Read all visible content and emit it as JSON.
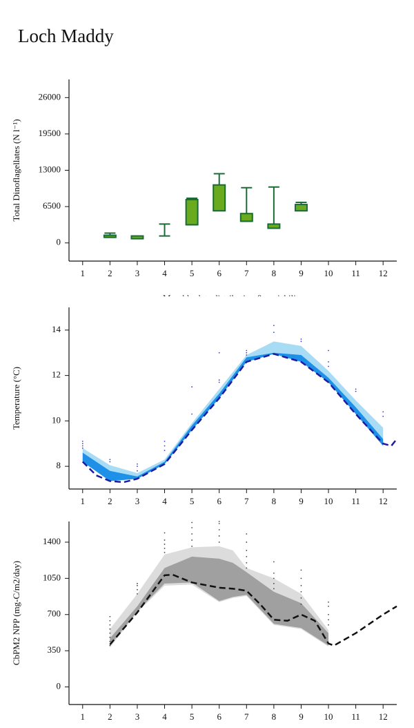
{
  "title": "Loch Maddy",
  "chart_data": [
    {
      "type": "box",
      "ylabel": "Total Dinoflagellates (N l⁻¹)",
      "xlabel": "Monthly data distribution & variability",
      "xlim": [
        0.5,
        12.5
      ],
      "xticks": [
        1,
        2,
        3,
        4,
        5,
        6,
        7,
        8,
        9,
        10,
        11,
        12
      ],
      "ylim": [
        -3250,
        29250
      ],
      "yticks": [
        0,
        6500,
        13000,
        19500,
        26000
      ],
      "color": "#6aaa1e",
      "line_color": "#1a6b35",
      "x": [
        2,
        3,
        4,
        5,
        6,
        7,
        8,
        9
      ],
      "low": [
        1000,
        null,
        1250,
        3250,
        5750,
        3875,
        2625,
        5750
      ],
      "q1": [
        1000,
        750,
        null,
        3250,
        5750,
        3875,
        2625,
        5750
      ],
      "q3": [
        1375,
        1250,
        null,
        7750,
        10375,
        5250,
        3375,
        6875
      ],
      "high": [
        1750,
        null,
        3375,
        8000,
        12375,
        9875,
        10000,
        7250
      ]
    },
    {
      "type": "line",
      "ylabel": "Temperature (°C)",
      "xlim": [
        0.5,
        12.5
      ],
      "xticks": [
        1,
        2,
        3,
        4,
        5,
        6,
        7,
        8,
        9,
        10,
        11,
        12
      ],
      "ylim": [
        7,
        15
      ],
      "yticks": [
        8,
        10,
        12,
        14
      ],
      "series": [
        {
          "kind": "band",
          "color": "#a8dcf5",
          "x": [
            1,
            2,
            3,
            4,
            5,
            6,
            7,
            8,
            9,
            10,
            11,
            12
          ],
          "lower": [
            8.2,
            7.35,
            7.45,
            8.1,
            9.6,
            11.0,
            12.6,
            12.95,
            12.6,
            11.7,
            10.3,
            8.9
          ],
          "upper": [
            8.8,
            8.05,
            7.7,
            8.3,
            9.9,
            11.4,
            12.9,
            13.5,
            13.3,
            12.2,
            10.9,
            9.7
          ]
        },
        {
          "kind": "band",
          "color": "#1e90e8",
          "x": [
            1,
            2,
            3,
            4,
            5,
            6,
            7,
            8,
            9,
            10,
            11,
            12
          ],
          "lower": [
            8.2,
            7.35,
            7.45,
            8.1,
            9.6,
            11.0,
            12.6,
            12.95,
            12.6,
            11.7,
            10.3,
            8.9
          ],
          "upper": [
            8.6,
            7.8,
            7.55,
            8.2,
            9.8,
            11.2,
            12.8,
            13.0,
            12.9,
            11.9,
            10.6,
            9.2
          ]
        },
        {
          "kind": "line",
          "color": "#1c1ca0",
          "dashed": true,
          "x": [
            1,
            1.5,
            2,
            2.5,
            3,
            4,
            5,
            6,
            7,
            8,
            9,
            10,
            11,
            12,
            12.3,
            12.5
          ],
          "values": [
            8.2,
            7.6,
            7.35,
            7.3,
            7.45,
            8.1,
            9.6,
            11.0,
            12.6,
            12.95,
            12.6,
            11.7,
            10.3,
            9.0,
            8.9,
            9.2
          ]
        },
        {
          "kind": "points",
          "color": "#3a3ad0",
          "x": [
            1,
            1,
            1,
            1,
            2,
            2,
            3,
            3,
            3,
            4,
            4,
            4,
            5,
            5,
            6,
            6,
            6,
            7,
            7,
            7,
            8,
            8,
            9,
            9,
            10,
            10,
            10,
            11,
            11,
            12,
            12
          ],
          "values": [
            8.8,
            8.9,
            9.0,
            9.1,
            8.2,
            8.3,
            7.8,
            8.0,
            8.1,
            8.7,
            8.9,
            9.1,
            10.3,
            11.5,
            11.7,
            11.8,
            13.0,
            12.9,
            13.0,
            13.1,
            13.9,
            14.2,
            13.5,
            13.6,
            12.4,
            12.6,
            13.1,
            11.3,
            11.4,
            10.2,
            10.4
          ]
        }
      ]
    },
    {
      "type": "line",
      "ylabel": "CbPM2 NPP (mg-C/m2/day)",
      "xlim": [
        0.5,
        12.5
      ],
      "xticks": [
        1,
        2,
        3,
        4,
        5,
        6,
        7,
        8,
        9,
        10,
        11,
        12
      ],
      "ylim": [
        -170,
        1600
      ],
      "yticks": [
        0,
        350,
        700,
        1050,
        1400
      ],
      "series": [
        {
          "kind": "band",
          "color": "#dcdcdc",
          "x": [
            2,
            3,
            4,
            5,
            6,
            6.5,
            7,
            8,
            9,
            10
          ],
          "lower": [
            380,
            720,
            980,
            990,
            820,
            860,
            880,
            600,
            560,
            390
          ],
          "upper": [
            560,
            900,
            1280,
            1350,
            1360,
            1320,
            1150,
            1050,
            900,
            550
          ]
        },
        {
          "kind": "band",
          "color": "#a0a0a0",
          "x": [
            2,
            3,
            4,
            5,
            6,
            6.5,
            7,
            8,
            9,
            10
          ],
          "lower": [
            400,
            730,
            1000,
            1010,
            830,
            870,
            890,
            610,
            570,
            400
          ],
          "upper": [
            470,
            780,
            1150,
            1260,
            1240,
            1200,
            1110,
            920,
            810,
            520
          ]
        },
        {
          "kind": "line",
          "color": "#111111",
          "dashed": true,
          "x": [
            2,
            3,
            4,
            4.3,
            5,
            6,
            6.5,
            7,
            7.5,
            8,
            8.5,
            9,
            9.5,
            10,
            10.2,
            11,
            12,
            12.5
          ],
          "values": [
            410,
            720,
            1080,
            1085,
            1010,
            960,
            950,
            930,
            800,
            650,
            640,
            700,
            640,
            420,
            400,
            520,
            700,
            780
          ]
        },
        {
          "kind": "points",
          "color": "#444444",
          "x": [
            2,
            2,
            2,
            2,
            2,
            2,
            2,
            2,
            3,
            3,
            3,
            3,
            4,
            4,
            4,
            4,
            4,
            5,
            5,
            5,
            5,
            5,
            6,
            6,
            6,
            6,
            6,
            7,
            7,
            7,
            7,
            7,
            7,
            8,
            8,
            8,
            8,
            8,
            9,
            9,
            9,
            9,
            9,
            9,
            10,
            10,
            10,
            10,
            10
          ],
          "values": [
            400,
            440,
            480,
            520,
            560,
            600,
            640,
            680,
            900,
            940,
            980,
            1000,
            1300,
            1340,
            1380,
            1420,
            1490,
            1360,
            1420,
            1480,
            1540,
            1590,
            1400,
            1460,
            1520,
            1580,
            1600,
            1150,
            1200,
            1260,
            1320,
            1400,
            1480,
            950,
            1000,
            1050,
            1100,
            1210,
            800,
            860,
            920,
            980,
            1050,
            1130,
            600,
            650,
            700,
            780,
            820
          ]
        }
      ]
    }
  ]
}
